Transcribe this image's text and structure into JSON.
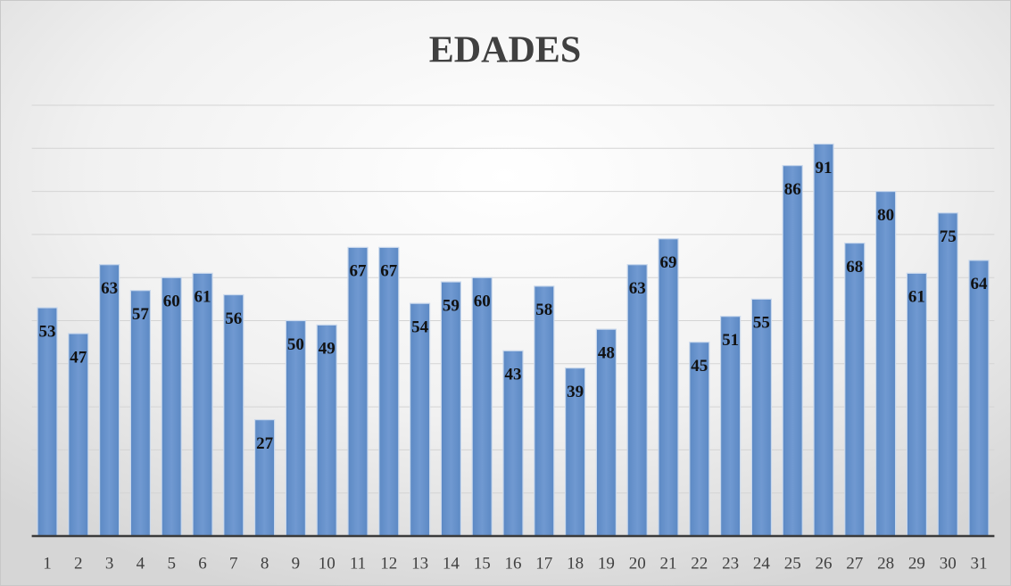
{
  "chart_data": {
    "type": "bar",
    "title": "EDADES",
    "categories": [
      "1",
      "2",
      "3",
      "4",
      "5",
      "6",
      "7",
      "8",
      "9",
      "10",
      "11",
      "12",
      "13",
      "14",
      "15",
      "16",
      "17",
      "18",
      "19",
      "20",
      "21",
      "22",
      "23",
      "24",
      "25",
      "26",
      "27",
      "28",
      "29",
      "30",
      "31"
    ],
    "values": [
      53,
      47,
      63,
      57,
      60,
      61,
      56,
      27,
      50,
      49,
      67,
      67,
      54,
      59,
      60,
      43,
      58,
      39,
      48,
      63,
      69,
      45,
      51,
      55,
      86,
      91,
      68,
      80,
      61,
      75,
      64
    ],
    "color": "#6895cd",
    "ylim": [
      0,
      100
    ],
    "yticks": [
      0,
      10,
      20,
      30,
      40,
      50,
      60,
      70,
      80,
      90,
      100
    ],
    "grid": true
  }
}
